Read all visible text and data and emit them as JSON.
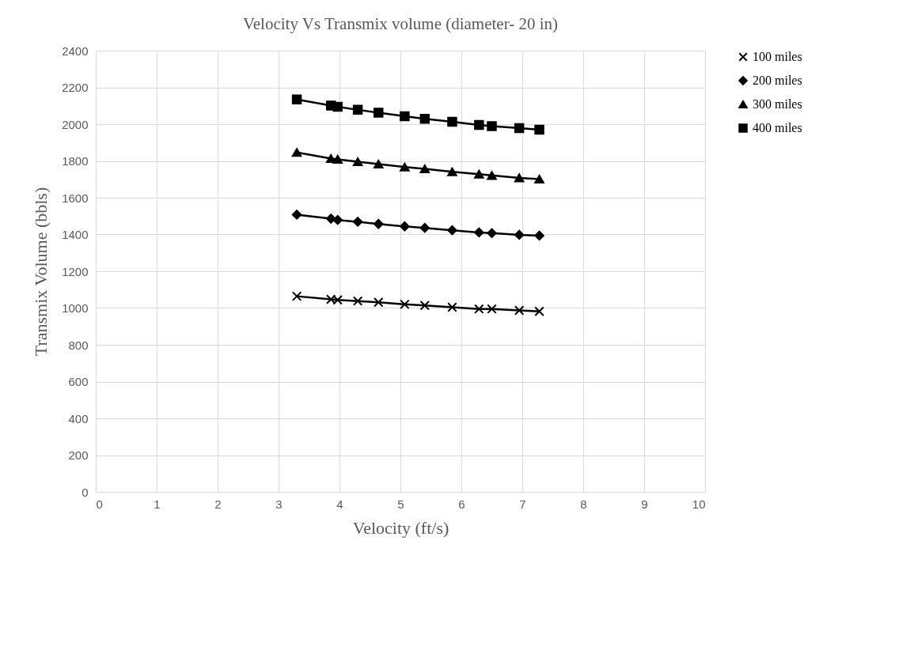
{
  "chart_data": {
    "type": "line",
    "title": "Velocity Vs Transmix volume (diameter- 20 in)",
    "xlabel": "Velocity (ft/s)",
    "ylabel": "Transmix Volume (bbls)",
    "x": [
      3.3,
      3.86,
      3.97,
      4.3,
      4.64,
      5.07,
      5.4,
      5.85,
      6.29,
      6.5,
      6.95,
      7.28
    ],
    "series": [
      {
        "name": "100 miles",
        "color": "#000000",
        "marker": "cross",
        "values": [
          1064,
          1047,
          1044,
          1038,
          1031,
          1020,
          1014,
          1004,
          995,
          995,
          987,
          982
        ]
      },
      {
        "name": "200 miles",
        "color": "#000000",
        "marker": "diamond",
        "values": [
          1508,
          1486,
          1479,
          1469,
          1457,
          1444,
          1436,
          1423,
          1411,
          1407,
          1398,
          1394
        ]
      },
      {
        "name": "300 miles",
        "color": "#000000",
        "marker": "triangle",
        "values": [
          1846,
          1813,
          1809,
          1796,
          1783,
          1767,
          1757,
          1741,
          1728,
          1721,
          1708,
          1701
        ]
      },
      {
        "name": "400 miles",
        "color": "#000000",
        "marker": "square",
        "values": [
          2134,
          2101,
          2095,
          2078,
          2062,
          2043,
          2029,
          2013,
          1996,
          1989,
          1979,
          1970
        ]
      }
    ],
    "xlim": [
      0,
      10
    ],
    "xticks": [
      0,
      1,
      2,
      3,
      4,
      5,
      6,
      7,
      8,
      9,
      10
    ],
    "ylim": [
      0,
      2400
    ],
    "yticks": [
      0,
      200,
      400,
      600,
      800,
      1000,
      1200,
      1400,
      1600,
      1800,
      2000,
      2200,
      2400
    ],
    "grid": true,
    "legend": "right",
    "line_style": "solid"
  }
}
